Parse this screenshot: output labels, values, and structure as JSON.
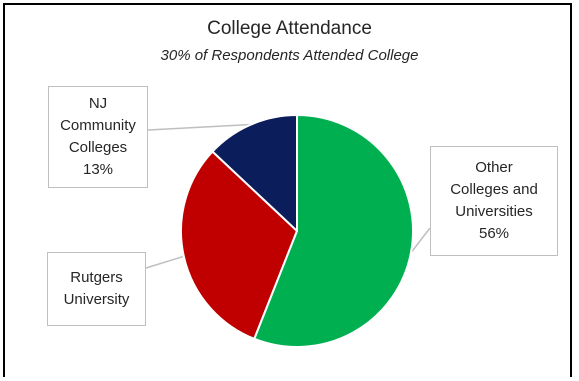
{
  "chart_data": {
    "type": "pie",
    "title": "College Attendance",
    "subtitle": "30% of Respondents Attended College",
    "slices": [
      {
        "label_lines": [
          "NJ",
          "Community",
          "Colleges"
        ],
        "value_label": "13%",
        "value": 13,
        "color": "#0b1d5b"
      },
      {
        "label_lines": [
          "Rutgers",
          "University"
        ],
        "value_label": "",
        "value": 31,
        "color": "#c00000"
      },
      {
        "label_lines": [
          "Other",
          "Colleges and",
          "Universities"
        ],
        "value_label": "56%",
        "value": 56,
        "color": "#00b050"
      }
    ],
    "legend": "none"
  }
}
